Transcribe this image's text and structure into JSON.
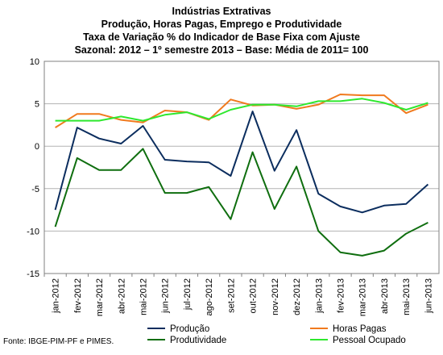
{
  "title_lines": [
    "Indústrias Extrativas",
    "Produção, Horas Pagas, Emprego e Produtividade",
    "Taxa de Variação % do Indicador de Base Fixa com Ajuste",
    "Sazonal: 2012 – 1º semestre 2013 – Base: Média de 2011= 100"
  ],
  "source": "Fonte: IBGE-PIM-PF e PIMES.",
  "chart_data": {
    "type": "line",
    "categories": [
      "jan-2012",
      "fev-2012",
      "mar-2012",
      "abr-2012",
      "mai-2012",
      "jun-2012",
      "jul-2012",
      "ago-2012",
      "set-2012",
      "out-2012",
      "nov-2012",
      "dez-2012",
      "jan-2013",
      "fev-2013",
      "mar-2013",
      "abr-2013",
      "mai-2013",
      "jun-2013"
    ],
    "ylim": [
      -15,
      10
    ],
    "yticks": [
      -15,
      -10,
      -5,
      0,
      5,
      10
    ],
    "grid": true,
    "legend_position": "bottom",
    "series": [
      {
        "name": "Produção",
        "color": "#0b2d5e",
        "values": [
          -7.5,
          2.2,
          0.9,
          0.3,
          2.4,
          -1.6,
          -1.8,
          -1.9,
          -3.5,
          4.1,
          -2.9,
          1.9,
          -5.6,
          -7.1,
          -7.8,
          -7.0,
          -6.8,
          -4.5
        ]
      },
      {
        "name": "Horas Pagas",
        "color": "#f07a1e",
        "values": [
          2.2,
          3.8,
          3.8,
          3.1,
          2.8,
          4.2,
          4.0,
          3.1,
          5.5,
          4.8,
          4.9,
          4.4,
          4.9,
          6.1,
          6.0,
          6.0,
          3.9,
          4.9
        ]
      },
      {
        "name": "Produtividade",
        "color": "#0f6e0f",
        "values": [
          -9.5,
          -1.4,
          -2.8,
          -2.8,
          -0.3,
          -5.5,
          -5.5,
          -4.8,
          -8.6,
          -0.7,
          -7.4,
          -2.4,
          -10.0,
          -12.5,
          -12.9,
          -12.3,
          -10.3,
          -9.0
        ]
      },
      {
        "name": "Pessoal Ocupado",
        "color": "#2ee82e",
        "values": [
          3.0,
          3.0,
          3.0,
          3.5,
          3.0,
          3.7,
          4.0,
          3.2,
          4.3,
          4.9,
          4.9,
          4.7,
          5.3,
          5.3,
          5.6,
          5.1,
          4.3,
          5.1
        ]
      }
    ]
  }
}
